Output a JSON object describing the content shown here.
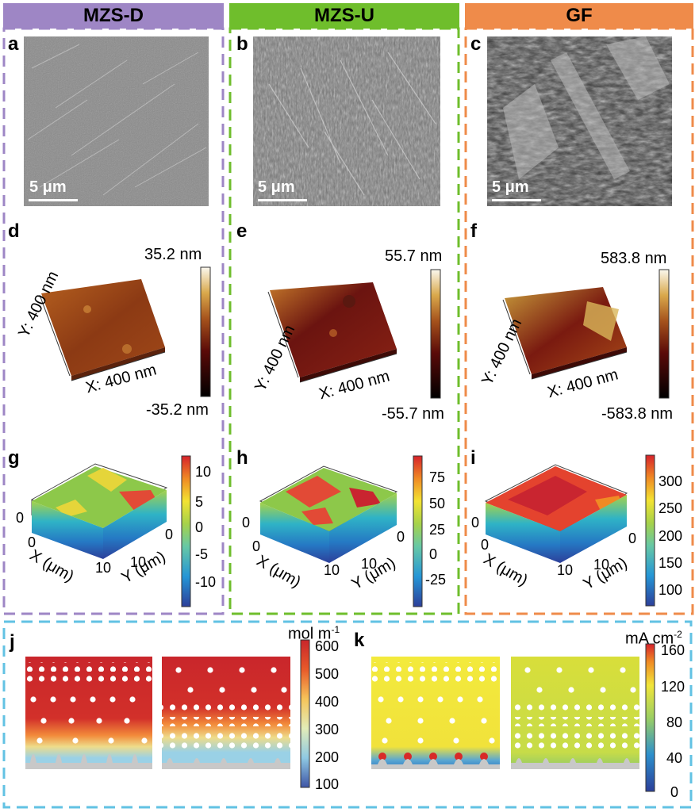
{
  "figure": {
    "columns": [
      {
        "header": "MZS-D",
        "color": "#9e86c5"
      },
      {
        "header": "MZS-U",
        "color": "#6fbe2c"
      },
      {
        "header": "GF",
        "color": "#ef8b4a"
      }
    ],
    "bottom_box_color": "#62c2e3",
    "panel_labels": {
      "a": "a",
      "b": "b",
      "c": "c",
      "d": "d",
      "e": "e",
      "f": "f",
      "g": "g",
      "h": "h",
      "i": "i",
      "j": "j",
      "k": "k"
    },
    "sem": {
      "scale_a": "5  μm",
      "scale_b": "5  μm",
      "scale_c": "5  μm"
    },
    "afm": {
      "d": {
        "max": "35.2 nm",
        "min": "-35.2 nm",
        "y_axis": "Y: 400 nm",
        "x_axis": "X: 400 nm"
      },
      "e": {
        "max": "55.7 nm",
        "min": "-55.7 nm",
        "y_axis": "Y: 400 nm",
        "x_axis": "X: 400 nm"
      },
      "f": {
        "max": "583.8 nm",
        "min": "-583.8 nm",
        "y_axis": "Y: 400 nm",
        "x_axis": "X: 400 nm"
      }
    },
    "surfaces": {
      "g": {
        "ticks": [
          "10",
          "5",
          "0",
          "-5",
          "-10"
        ],
        "z0": "0",
        "x0": "0",
        "x10": "10",
        "y0": "0",
        "y10": "10",
        "xlabel": "X (μm)",
        "ylabel": "Y (μm)"
      },
      "h": {
        "ticks": [
          "75",
          "50",
          "25",
          "0",
          "-25"
        ],
        "z0": "0",
        "x0": "0",
        "x10": "10",
        "y0": "0",
        "y10": "10",
        "xlabel": "X (μm)",
        "ylabel": "Y (μm)"
      },
      "i": {
        "ticks": [
          "300",
          "250",
          "200",
          "150",
          "100"
        ],
        "z0": "0",
        "x0": "0",
        "x10": "10",
        "y0": "0",
        "y10": "10",
        "xlabel": "X (μm)",
        "ylabel": "Y (μm)"
      }
    },
    "sim_j": {
      "unit": "mol m",
      "unit_sup": "-1",
      "ticks": [
        "600",
        "500",
        "400",
        "300",
        "200",
        "100"
      ]
    },
    "sim_k": {
      "unit": "mA cm",
      "unit_sup": "-2",
      "ticks": [
        "160",
        "120",
        "80",
        "40",
        "0"
      ]
    }
  }
}
